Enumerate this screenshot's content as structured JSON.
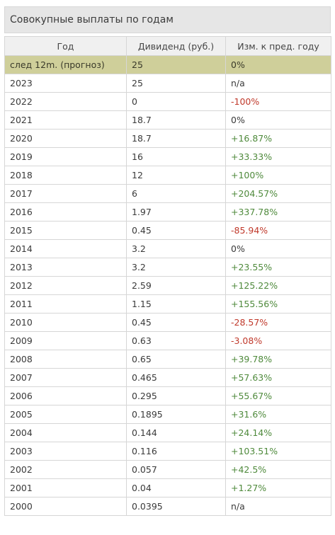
{
  "title": "Совокупные выплаты по годам",
  "columns": [
    "Год",
    "Дивиденд (руб.)",
    "Изм. к пред. году"
  ],
  "colors": {
    "positive": "#4f8a3c",
    "negative": "#c0392b",
    "highlight_row": "#cfcf9a"
  },
  "rows": [
    {
      "year": "след 12m. (прогноз)",
      "dividend": "25",
      "change": "0%",
      "trend": "neutral",
      "highlight": true
    },
    {
      "year": "2023",
      "dividend": "25",
      "change": "n/a",
      "trend": "neutral"
    },
    {
      "year": "2022",
      "dividend": "0",
      "change": "-100%",
      "trend": "neg"
    },
    {
      "year": "2021",
      "dividend": "18.7",
      "change": "0%",
      "trend": "neutral"
    },
    {
      "year": "2020",
      "dividend": "18.7",
      "change": "+16.87%",
      "trend": "pos"
    },
    {
      "year": "2019",
      "dividend": "16",
      "change": "+33.33%",
      "trend": "pos"
    },
    {
      "year": "2018",
      "dividend": "12",
      "change": "+100%",
      "trend": "pos"
    },
    {
      "year": "2017",
      "dividend": "6",
      "change": "+204.57%",
      "trend": "pos"
    },
    {
      "year": "2016",
      "dividend": "1.97",
      "change": "+337.78%",
      "trend": "pos"
    },
    {
      "year": "2015",
      "dividend": "0.45",
      "change": "-85.94%",
      "trend": "neg"
    },
    {
      "year": "2014",
      "dividend": "3.2",
      "change": "0%",
      "trend": "neutral"
    },
    {
      "year": "2013",
      "dividend": "3.2",
      "change": "+23.55%",
      "trend": "pos"
    },
    {
      "year": "2012",
      "dividend": "2.59",
      "change": "+125.22%",
      "trend": "pos"
    },
    {
      "year": "2011",
      "dividend": "1.15",
      "change": "+155.56%",
      "trend": "pos"
    },
    {
      "year": "2010",
      "dividend": "0.45",
      "change": "-28.57%",
      "trend": "neg"
    },
    {
      "year": "2009",
      "dividend": "0.63",
      "change": "-3.08%",
      "trend": "neg"
    },
    {
      "year": "2008",
      "dividend": "0.65",
      "change": "+39.78%",
      "trend": "pos"
    },
    {
      "year": "2007",
      "dividend": "0.465",
      "change": "+57.63%",
      "trend": "pos"
    },
    {
      "year": "2006",
      "dividend": "0.295",
      "change": "+55.67%",
      "trend": "pos"
    },
    {
      "year": "2005",
      "dividend": "0.1895",
      "change": "+31.6%",
      "trend": "pos"
    },
    {
      "year": "2004",
      "dividend": "0.144",
      "change": "+24.14%",
      "trend": "pos"
    },
    {
      "year": "2003",
      "dividend": "0.116",
      "change": "+103.51%",
      "trend": "pos"
    },
    {
      "year": "2002",
      "dividend": "0.057",
      "change": "+42.5%",
      "trend": "pos"
    },
    {
      "year": "2001",
      "dividend": "0.04",
      "change": "+1.27%",
      "trend": "pos"
    },
    {
      "year": "2000",
      "dividend": "0.0395",
      "change": "n/a",
      "trend": "neutral"
    }
  ]
}
